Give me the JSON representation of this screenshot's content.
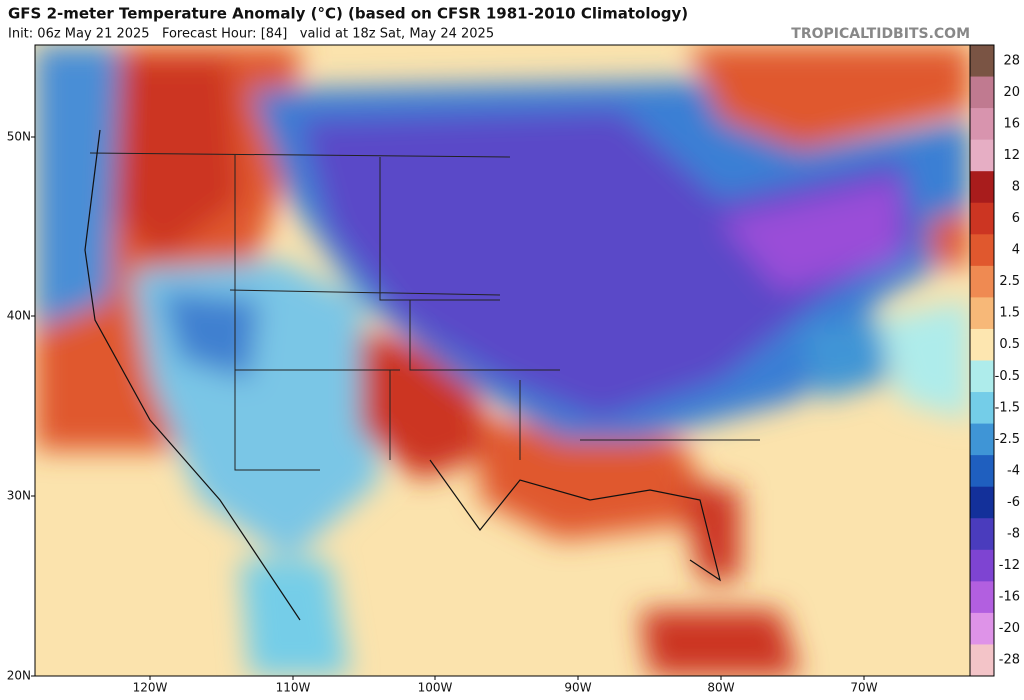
{
  "header": {
    "title": "GFS 2-meter Temperature Anomaly (°C) (based on CFSR 1981-2010 Climatology)",
    "subtitle": "Init: 06z May 21 2025   Forecast Hour: [84]   valid at 18z Sat, May 24 2025",
    "watermark": "TROPICALTIDBITS.COM"
  },
  "map": {
    "lat_labels": [
      "50N",
      "40N",
      "30N",
      "20N"
    ],
    "lon_labels": [
      "120W",
      "110W",
      "100W",
      "90W",
      "80W",
      "70W"
    ]
  },
  "colorbar": {
    "labels": [
      "28",
      "20",
      "16",
      "12",
      "8",
      "6",
      "4",
      "2.5",
      "1.5",
      "0.5",
      "-0.5",
      "-1.5",
      "-2.5",
      "-4",
      "-6",
      "-8",
      "-12",
      "-16",
      "-20",
      "-28"
    ],
    "colors": [
      "#7a5444",
      "#c07a90",
      "#d894ae",
      "#e6aec4",
      "#a81c1c",
      "#cc3522",
      "#e0582e",
      "#ef8a52",
      "#f7b878",
      "#fde6b0",
      "#aeeceb",
      "#74cde8",
      "#3f95d6",
      "#1f5fbf",
      "#13309a",
      "#4a3cbd",
      "#7e44d2",
      "#b25fe0",
      "#de93e8",
      "#f3c4c8"
    ]
  }
}
